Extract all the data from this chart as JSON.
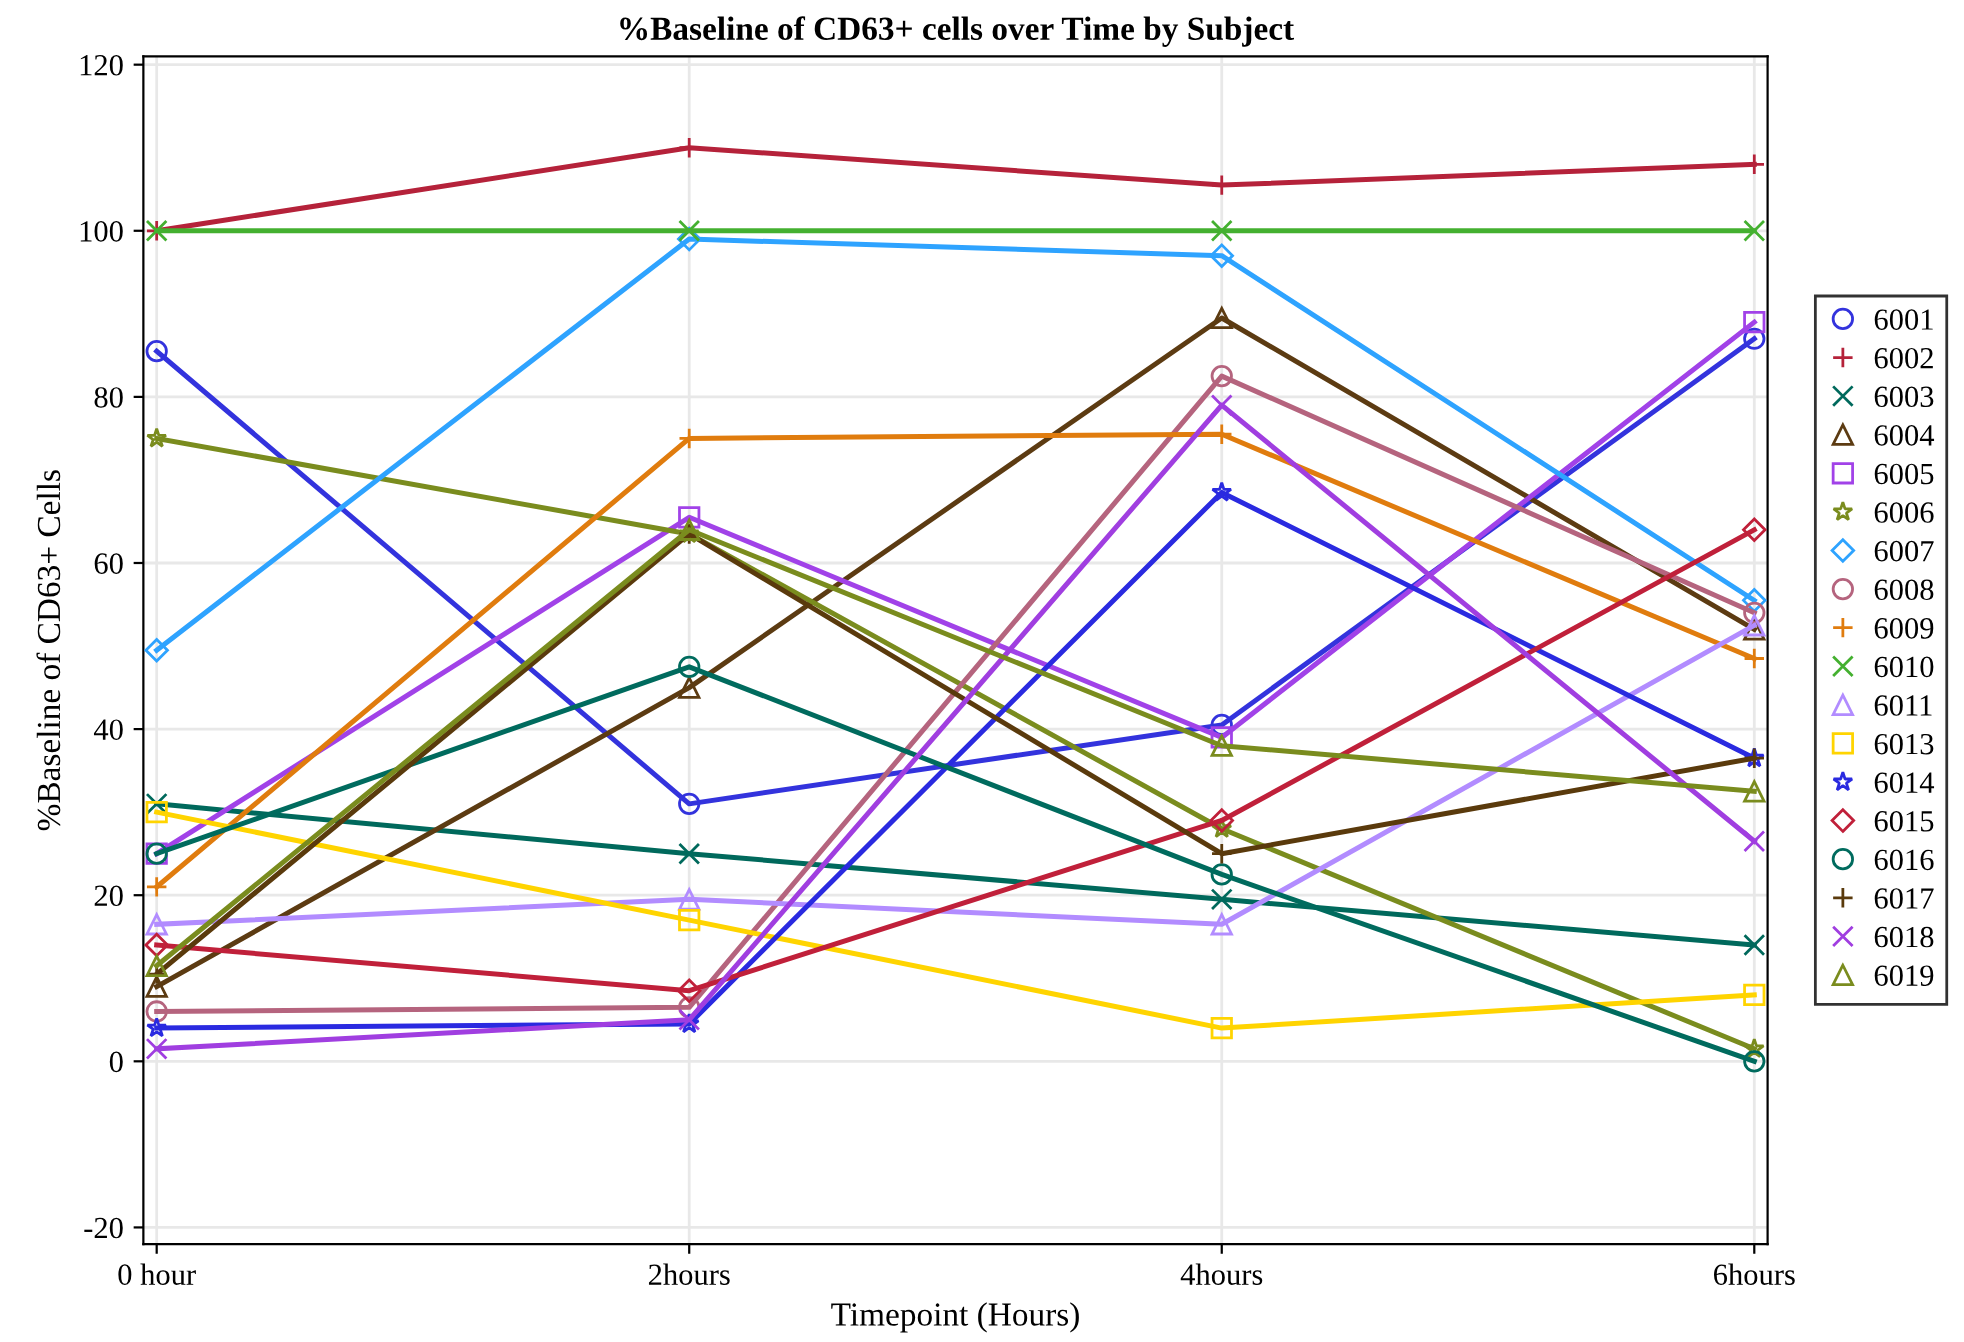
{
  "chart_data": {
    "type": "line",
    "title": "%Baseline of CD63+ cells over Time by Subject",
    "xlabel": "Timepoint (Hours)",
    "ylabel": "%Baseline of CD63+ Cells",
    "categories": [
      "0 hour",
      "2hours",
      "4hours",
      "6hours"
    ],
    "ylim": [
      -22,
      121
    ],
    "yticks": [
      -20,
      0,
      20,
      40,
      60,
      80,
      100,
      120
    ],
    "grid": true,
    "legend": "right",
    "line_style": "solid",
    "series": [
      {
        "name": "6001",
        "color": "#3333dd",
        "marker": "circle",
        "values": [
          85.5,
          31,
          40.5,
          87
        ]
      },
      {
        "name": "6002",
        "color": "#b5223a",
        "marker": "plus",
        "values": [
          100,
          110,
          105.5,
          108
        ]
      },
      {
        "name": "6003",
        "color": "#00695c",
        "marker": "cross",
        "values": [
          31,
          25,
          19.5,
          14
        ]
      },
      {
        "name": "6004",
        "color": "#5c3b12",
        "marker": "triangle",
        "values": [
          9,
          45,
          89.5,
          52
        ]
      },
      {
        "name": "6005",
        "color": "#a142e8",
        "marker": "square",
        "values": [
          25,
          65.5,
          39,
          89
        ]
      },
      {
        "name": "6006",
        "color": "#7a8c1e",
        "marker": "star",
        "values": [
          75,
          63.5,
          28,
          1.5
        ]
      },
      {
        "name": "6007",
        "color": "#2ea3ff",
        "marker": "diamond",
        "values": [
          49.5,
          99,
          97,
          55.5
        ]
      },
      {
        "name": "6008",
        "color": "#b5647e",
        "marker": "circle",
        "values": [
          6,
          6.5,
          82.5,
          54
        ]
      },
      {
        "name": "6009",
        "color": "#e07c0e",
        "marker": "plus",
        "values": [
          21,
          75,
          75.5,
          48.5
        ]
      },
      {
        "name": "6010",
        "color": "#44b030",
        "marker": "cross",
        "values": [
          100,
          100,
          100,
          100
        ]
      },
      {
        "name": "6011",
        "color": "#b28cff",
        "marker": "triangle",
        "values": [
          16.5,
          19.5,
          16.5,
          52.5
        ]
      },
      {
        "name": "6013",
        "color": "#ffd400",
        "marker": "square",
        "values": [
          30,
          17,
          4,
          8
        ]
      },
      {
        "name": "6014",
        "color": "#2a2ae0",
        "marker": "star",
        "values": [
          4,
          4.5,
          68.5,
          36.5
        ]
      },
      {
        "name": "6015",
        "color": "#c0203a",
        "marker": "diamond",
        "values": [
          14,
          8.5,
          29,
          64
        ]
      },
      {
        "name": "6016",
        "color": "#006b5e",
        "marker": "circle",
        "values": [
          25,
          47.5,
          22.5,
          0
        ]
      },
      {
        "name": "6017",
        "color": "#5a3a0c",
        "marker": "plus",
        "values": [
          10.5,
          63.5,
          25,
          36.5
        ]
      },
      {
        "name": "6018",
        "color": "#a03ee0",
        "marker": "cross",
        "values": [
          1.5,
          5,
          79,
          26.5
        ]
      },
      {
        "name": "6019",
        "color": "#7a8c1e",
        "marker": "triangle",
        "values": [
          11.5,
          64,
          38,
          32.5
        ]
      }
    ]
  }
}
